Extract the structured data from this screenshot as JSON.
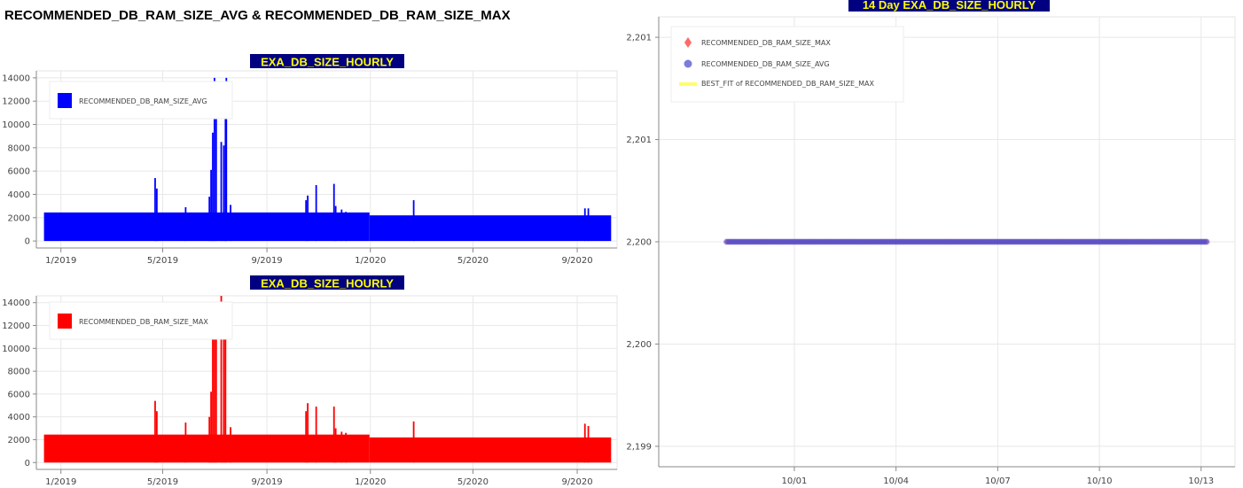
{
  "page": {
    "title": "RECOMMENDED_DB_RAM_SIZE_AVG & RECOMMENDED_DB_RAM_SIZE_MAX"
  },
  "colors": {
    "avg": "#0000ff",
    "max": "#ff0000",
    "title_bg": "#000080",
    "title_text": "#ffff00",
    "scatter_max": "#ff4444",
    "scatter_avg": "#5050d0",
    "best_fit": "#ffff66"
  },
  "chart_data": [
    {
      "id": "avg",
      "type": "area",
      "title": "EXA_DB_SIZE_HOURLY",
      "xlabel": "",
      "ylabel": "",
      "legend": [
        "RECOMMENDED_DB_RAM_SIZE_AVG"
      ],
      "legend_position": "top-left",
      "grid": true,
      "xlim": [
        "2018-12-03",
        "2020-10-18"
      ],
      "ylim": [
        -600,
        14600
      ],
      "x_ticks": [
        "1/2019",
        "5/2019",
        "9/2019",
        "1/2020",
        "5/2020",
        "9/2020"
      ],
      "y_ticks": [
        "0",
        "2000",
        "4000",
        "6000",
        "8000",
        "10000",
        "12000",
        "14000"
      ],
      "baseline": [
        {
          "from": "2018-12-12",
          "to": "2019-12-31",
          "value": 2450
        },
        {
          "from": "2019-12-31",
          "to": "2020-10-11",
          "value": 2200
        }
      ],
      "spikes": [
        {
          "date": "2019-04-22",
          "value": 5400
        },
        {
          "date": "2019-04-24",
          "value": 4500
        },
        {
          "date": "2019-05-28",
          "value": 2900
        },
        {
          "date": "2019-06-25",
          "value": 3800
        },
        {
          "date": "2019-06-27",
          "value": 6100
        },
        {
          "date": "2019-06-29",
          "value": 9300
        },
        {
          "date": "2019-07-01",
          "value": 14000
        },
        {
          "date": "2019-07-03",
          "value": 12100
        },
        {
          "date": "2019-07-09",
          "value": 8500
        },
        {
          "date": "2019-07-12",
          "value": 8200
        },
        {
          "date": "2019-07-14",
          "value": 10800
        },
        {
          "date": "2019-07-15",
          "value": 14000
        },
        {
          "date": "2019-07-20",
          "value": 3100
        },
        {
          "date": "2019-10-17",
          "value": 3500
        },
        {
          "date": "2019-10-19",
          "value": 3900
        },
        {
          "date": "2019-10-29",
          "value": 4800
        },
        {
          "date": "2019-11-19",
          "value": 4900
        },
        {
          "date": "2019-11-21",
          "value": 3000
        },
        {
          "date": "2019-11-28",
          "value": 2700
        },
        {
          "date": "2019-12-03",
          "value": 2500
        },
        {
          "date": "2020-02-21",
          "value": 3500
        },
        {
          "date": "2020-09-10",
          "value": 2800
        },
        {
          "date": "2020-09-14",
          "value": 2800
        }
      ]
    },
    {
      "id": "max",
      "type": "area",
      "title": "EXA_DB_SIZE_HOURLY",
      "xlabel": "",
      "ylabel": "",
      "legend": [
        "RECOMMENDED_DB_RAM_SIZE_MAX"
      ],
      "legend_position": "top-left",
      "grid": true,
      "xlim": [
        "2018-12-03",
        "2020-10-18"
      ],
      "ylim": [
        -600,
        14600
      ],
      "x_ticks": [
        "1/2019",
        "5/2019",
        "9/2019",
        "1/2020",
        "5/2020",
        "9/2020"
      ],
      "y_ticks": [
        "0",
        "2000",
        "4000",
        "6000",
        "8000",
        "10000",
        "12000",
        "14000"
      ],
      "baseline": [
        {
          "from": "2018-12-12",
          "to": "2019-12-31",
          "value": 2450
        },
        {
          "from": "2019-12-31",
          "to": "2020-10-11",
          "value": 2200
        }
      ],
      "spikes": [
        {
          "date": "2019-04-22",
          "value": 5400
        },
        {
          "date": "2019-04-24",
          "value": 4500
        },
        {
          "date": "2019-05-28",
          "value": 3500
        },
        {
          "date": "2019-06-25",
          "value": 4000
        },
        {
          "date": "2019-06-27",
          "value": 6200
        },
        {
          "date": "2019-06-29",
          "value": 11000
        },
        {
          "date": "2019-07-01",
          "value": 14000
        },
        {
          "date": "2019-07-03",
          "value": 12000
        },
        {
          "date": "2019-07-09",
          "value": 14600
        },
        {
          "date": "2019-07-12",
          "value": 14000
        },
        {
          "date": "2019-07-14",
          "value": 13000
        },
        {
          "date": "2019-07-20",
          "value": 3100
        },
        {
          "date": "2019-10-17",
          "value": 4500
        },
        {
          "date": "2019-10-19",
          "value": 5200
        },
        {
          "date": "2019-10-29",
          "value": 4900
        },
        {
          "date": "2019-11-19",
          "value": 4900
        },
        {
          "date": "2019-11-21",
          "value": 3000
        },
        {
          "date": "2019-11-28",
          "value": 2700
        },
        {
          "date": "2019-12-03",
          "value": 2600
        },
        {
          "date": "2020-02-21",
          "value": 3600
        },
        {
          "date": "2020-09-10",
          "value": 3400
        },
        {
          "date": "2020-09-14",
          "value": 3200
        }
      ]
    },
    {
      "id": "recent",
      "type": "scatter",
      "title": "14 Day EXA_DB_SIZE_HOURLY",
      "xlabel": "",
      "ylabel": "",
      "legend": [
        "RECOMMENDED_DB_RAM_SIZE_MAX",
        "RECOMMENDED_DB_RAM_SIZE_AVG",
        "BEST_FIT of RECOMMENDED_DB_RAM_SIZE_MAX"
      ],
      "legend_position": "top-left",
      "grid": true,
      "xlim": [
        "2020-09-27",
        "2020-10-14"
      ],
      "ylim": [
        2199.4,
        2201.6
      ],
      "x_ticks": [
        "10/01",
        "10/04",
        "10/07",
        "10/10",
        "10/13"
      ],
      "y_ticks": [
        "2,199",
        "2,200",
        "2,200",
        "2,201",
        "2,201"
      ],
      "x_range": [
        "2020-09-29",
        "2020-10-13T04:00"
      ],
      "value": 2200.5,
      "series": [
        {
          "name": "RECOMMENDED_DB_RAM_SIZE_MAX",
          "value": 2200.5
        },
        {
          "name": "RECOMMENDED_DB_RAM_SIZE_AVG",
          "value": 2200.5
        },
        {
          "name": "BEST_FIT of RECOMMENDED_DB_RAM_SIZE_MAX",
          "value": 2200.5
        }
      ]
    }
  ]
}
